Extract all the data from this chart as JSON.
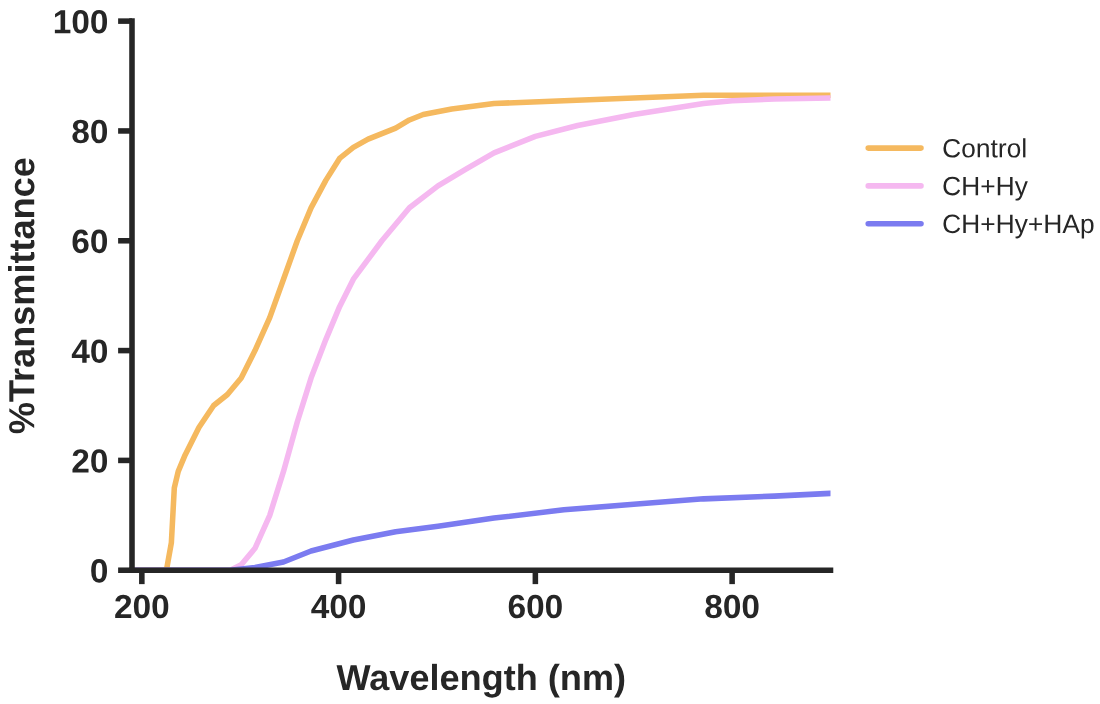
{
  "chart_data": {
    "type": "line",
    "xlabel": "Wavelength (nm)",
    "ylabel": "%Transmittance",
    "xlim": [
      190,
      900
    ],
    "ylim": [
      0,
      100
    ],
    "xticks": [
      200,
      400,
      600,
      800
    ],
    "yticks": [
      0,
      20,
      40,
      60,
      80,
      100
    ],
    "grid": false,
    "legend": "right",
    "marker": "none",
    "line_style": "solid",
    "series": [
      {
        "name": "Control",
        "color": "#f5b95f",
        "x": [
          190,
          225,
          230,
          233,
          237,
          244,
          258,
          273,
          287,
          301,
          315,
          330,
          344,
          358,
          372,
          387,
          401,
          415,
          430,
          444,
          458,
          472,
          486,
          515,
          558,
          629,
          700,
          771,
          843,
          900
        ],
        "values": [
          0,
          0,
          5,
          15,
          18,
          21,
          26,
          30,
          32,
          35,
          40,
          46,
          53,
          60,
          66,
          71,
          75,
          77,
          78.5,
          79.5,
          80.5,
          82,
          83,
          84,
          85,
          85.5,
          86,
          86.5,
          86.5,
          86.5
        ]
      },
      {
        "name": "CH+Hy",
        "color": "#f5b8f0",
        "x": [
          190,
          290,
          301,
          315,
          330,
          344,
          358,
          372,
          387,
          401,
          415,
          444,
          472,
          501,
          529,
          558,
          600,
          643,
          700,
          771,
          800,
          843,
          900
        ],
        "values": [
          0,
          0,
          1,
          4,
          10,
          18,
          27,
          35,
          42,
          48,
          53,
          60,
          66,
          70,
          73,
          76,
          79,
          81,
          83,
          85,
          85.5,
          85.8,
          86
        ]
      },
      {
        "name": "CH+Hy+HAp",
        "color": "#7b7bf0",
        "x": [
          190,
          290,
          315,
          344,
          372,
          415,
          458,
          501,
          558,
          629,
          700,
          771,
          843,
          900
        ],
        "values": [
          0,
          0,
          0.5,
          1.5,
          3.5,
          5.5,
          7,
          8,
          9.5,
          11,
          12,
          13,
          13.5,
          14
        ]
      }
    ]
  }
}
